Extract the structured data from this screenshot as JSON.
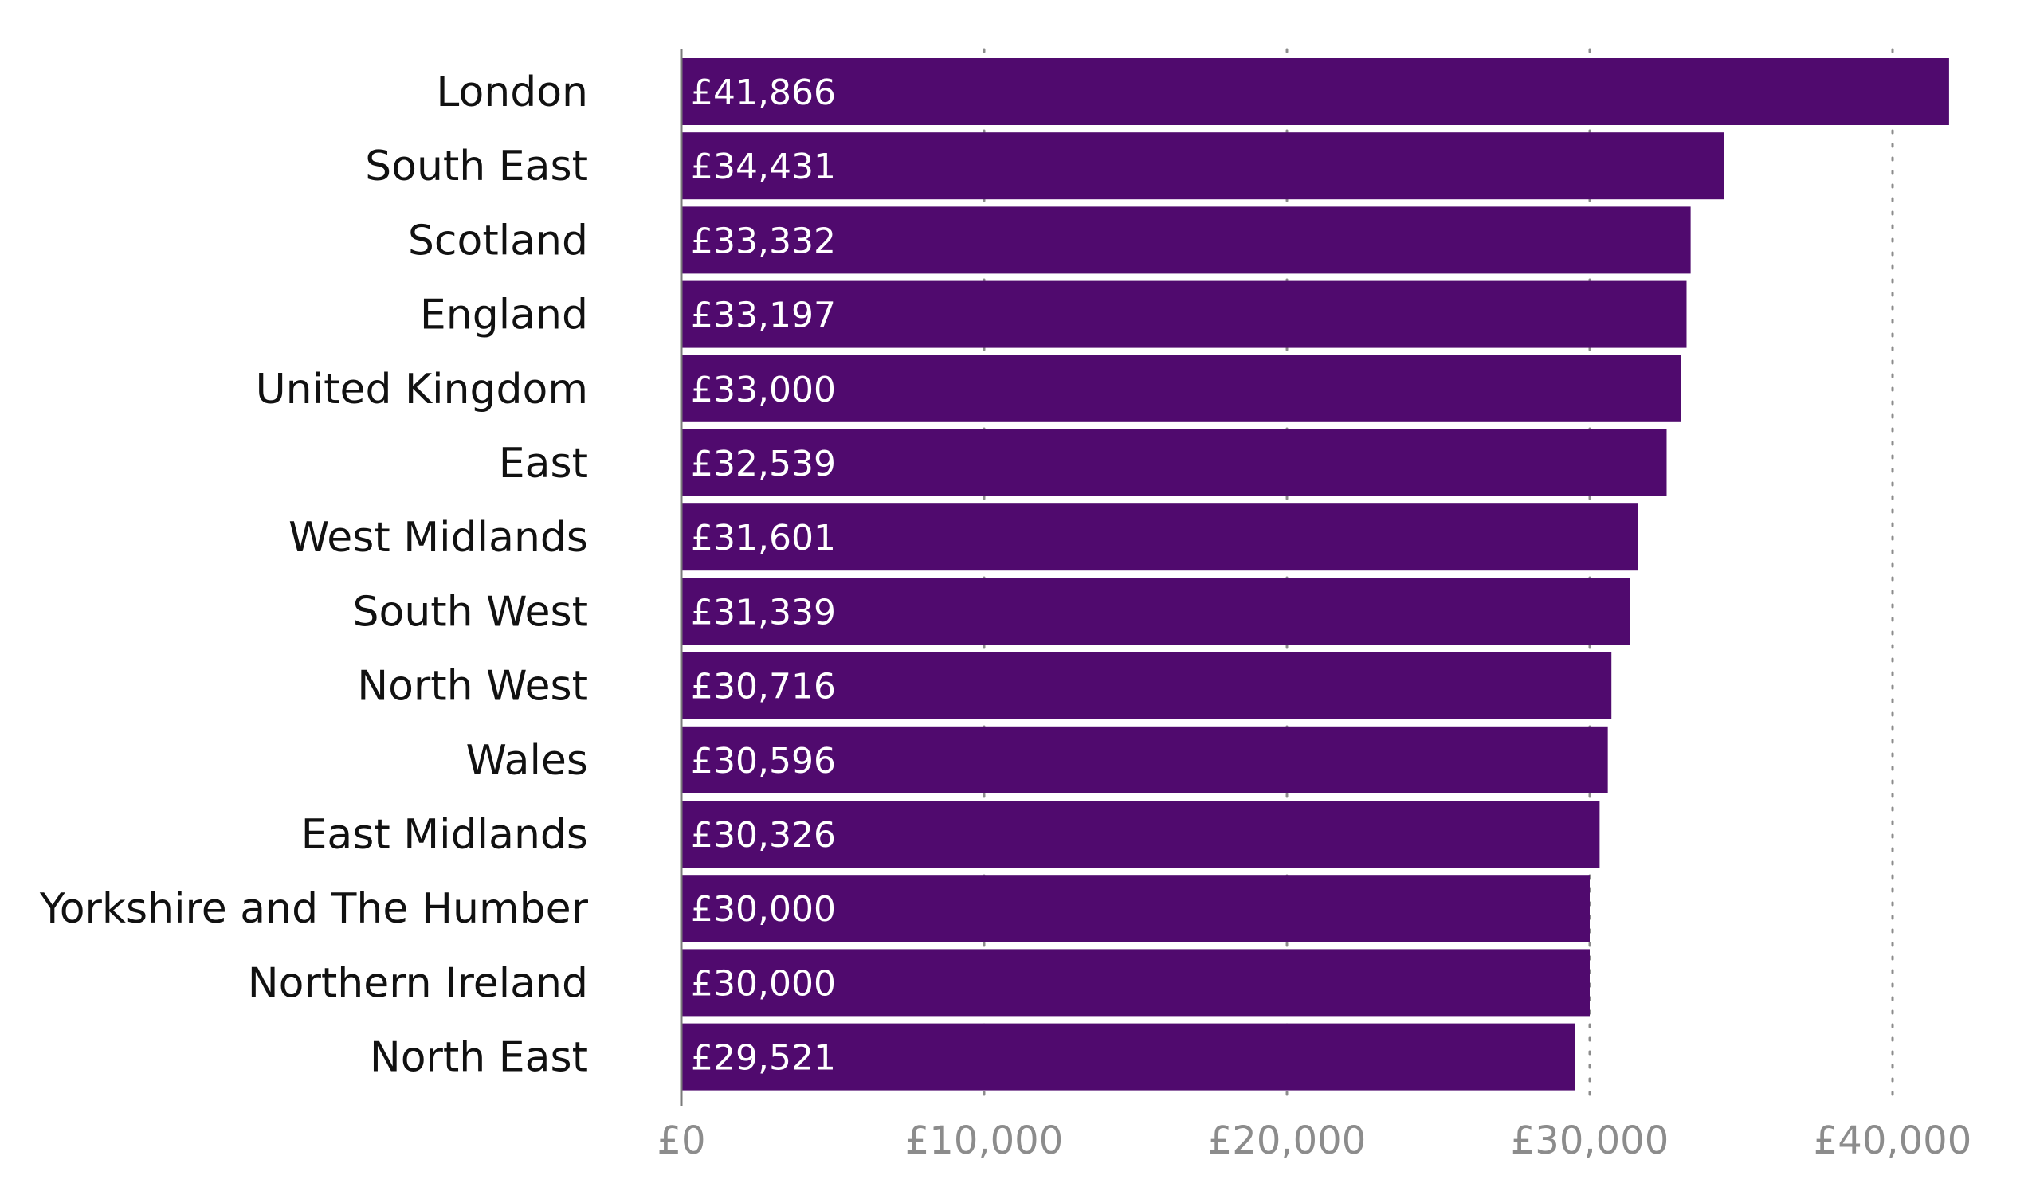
{
  "chart_data": {
    "type": "bar",
    "orientation": "horizontal",
    "categories": [
      "London",
      "South East",
      "Scotland",
      "England",
      "United Kingdom",
      "East",
      "West Midlands",
      "South West",
      "North West",
      "Wales",
      "East Midlands",
      "Yorkshire and The Humber",
      "Northern Ireland",
      "North East"
    ],
    "values": [
      41866,
      34431,
      33332,
      33197,
      33000,
      32539,
      31601,
      31339,
      30716,
      30596,
      30326,
      30000,
      30000,
      29521
    ],
    "data_labels": [
      "£41,866",
      "£34,431",
      "£33,332",
      "£33,197",
      "£33,000",
      "£32,539",
      "£31,601",
      "£31,339",
      "£30,716",
      "£30,596",
      "£30,326",
      "£30,000",
      "£30,000",
      "£29,521"
    ],
    "x_ticks": [
      0,
      10000,
      20000,
      30000,
      40000
    ],
    "x_tick_labels": [
      "£0",
      "£10,000",
      "£20,000",
      "£30,000",
      "£40,000"
    ],
    "xlim": [
      0,
      42000
    ],
    "grid": "vertical dotted",
    "legend": "none",
    "colors": {
      "bar": "#500A6E",
      "bar_label": "#ffffff",
      "category_label": "#111111",
      "tick_label": "#8c8c8c",
      "grid": "#8c8c8c",
      "axis": "#7a7a7a"
    }
  }
}
